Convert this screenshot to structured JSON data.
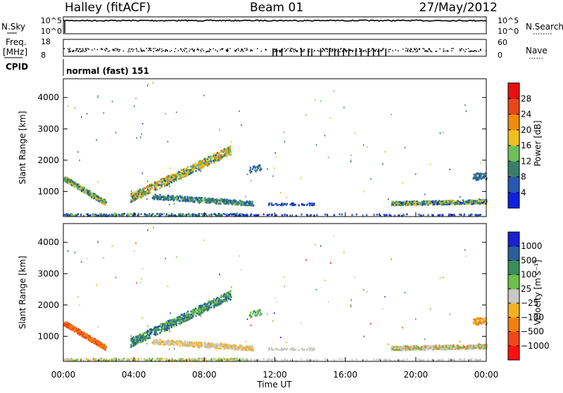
{
  "header": {
    "station": "Halley (fitACF)",
    "beam": "Beam 01",
    "date": "27/May/2012"
  },
  "colors": {
    "power_scale": [
      "#1020e0",
      "#2858b0",
      "#3a7e6a",
      "#6cc05a",
      "#f0c020",
      "#f08a10",
      "#e84818",
      "#e81010"
    ],
    "velocity_scale": [
      "#ff1010",
      "#f04818",
      "#f08010",
      "#f0b020",
      "#c8c8c4",
      "#6cc048",
      "#3a8e5a",
      "#2a5e9a",
      "#1a20d0"
    ]
  },
  "chart_data": [
    {
      "type": "line",
      "panel": "noise",
      "left_label": "N.Sky",
      "right_label": "N.Search",
      "left_ticks": [
        "10^5",
        "10^0"
      ],
      "right_ticks": [
        "10^5",
        "10^0"
      ]
    },
    {
      "type": "scatter",
      "panel": "frequency",
      "left_label": "Freq.",
      "left_unit": "[MHz]",
      "left_ticks": [
        "18",
        "8"
      ],
      "right_label": "Nave",
      "right_ticks": [
        "60",
        "0"
      ],
      "cpid_label": "CPID",
      "cpid_text": "normal (fast) 151"
    },
    {
      "type": "heatmap",
      "panel": "power",
      "ylabel": "Slant Range [km]",
      "xlabel": "Time UT",
      "yticks": [
        1000,
        2000,
        3000,
        4000
      ],
      "ylim": [
        200,
        4600
      ],
      "xticks": [
        "00:00",
        "04:00",
        "08:00",
        "12:00",
        "16:00",
        "20:00",
        "00:00"
      ],
      "xlim_hours": [
        0,
        24
      ],
      "colorbar_label": "Power [dB]",
      "colorbar_ticks": [
        4,
        8,
        12,
        16,
        20,
        24,
        28
      ],
      "colorbar_range": [
        0,
        32
      ]
    },
    {
      "type": "heatmap",
      "panel": "velocity",
      "ylabel": "Slant Range [km]",
      "xlabel": "Time UT",
      "yticks": [
        1000,
        2000,
        3000,
        4000
      ],
      "ylim": [
        200,
        4600
      ],
      "xticks": [
        "00:00",
        "04:00",
        "08:00",
        "12:00",
        "16:00",
        "20:00",
        "00:00"
      ],
      "xlim_hours": [
        0,
        24
      ],
      "colorbar_label": "Velocity [m s⁻¹]",
      "colorbar_ticks": [
        "1000",
        "500",
        "100",
        "25",
        "−25",
        "−100",
        "−500",
        "−1000"
      ]
    }
  ]
}
